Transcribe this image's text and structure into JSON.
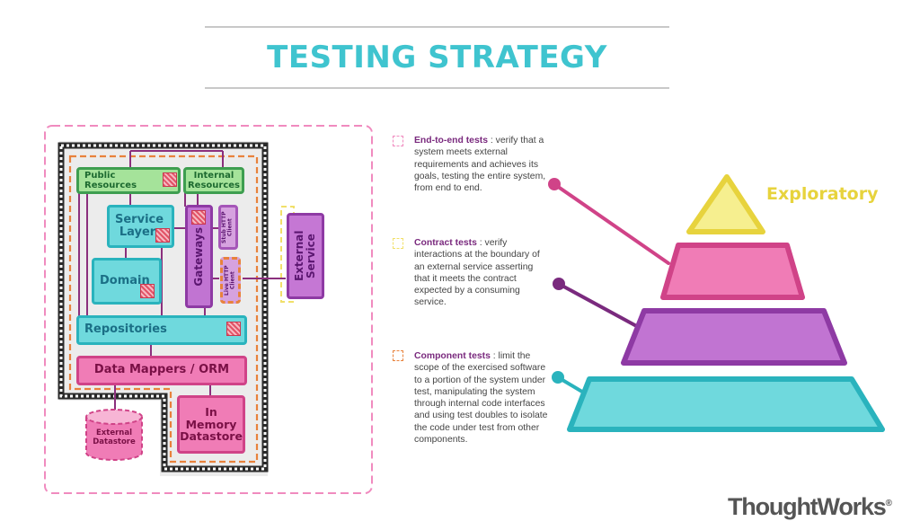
{
  "title": "TESTING STRATEGY",
  "colors": {
    "title": "#3fc4cf",
    "teal": "#6fd9dd",
    "green": "#a5e39a",
    "pink": "#f07cb6",
    "purple": "#c174d2",
    "yellow": "#f6ef8f",
    "orange_dash": "#e8823c"
  },
  "architecture": {
    "public_resources": "Public Resources",
    "internal_resources": "Internal Resources",
    "service_layer": "Service Layer",
    "domain": "Domain",
    "gateways": "Gateways",
    "stub_http_client": "Stub HTTP Client",
    "live_http_client": "Live HTTP Client",
    "external_service": "External Service",
    "repositories": "Repositories",
    "data_mappers": "Data Mappers / ORM",
    "in_memory_datastore": "In Memory Datastore",
    "external_datastore": "External Datastore"
  },
  "descriptions": [
    {
      "term": "End-to-end tests",
      "text": " : verify that a system meets external requirements and achieves its goals, testing the entire system, from end to end."
    },
    {
      "term": "Contract tests",
      "text": " : verify interactions at the boundary of an external service asserting that it meets the contract expected by a consuming service."
    },
    {
      "term": "Component tests",
      "text": " : limit the scope of the exercised software to a portion of the system under test, manipulating the system through internal code interfaces and using test doubles to isolate the code under test from other components."
    }
  ],
  "pyramid": {
    "top_label": "Exploratory"
  },
  "brand": {
    "name": "ThoughtWorks",
    "mark": "®"
  }
}
